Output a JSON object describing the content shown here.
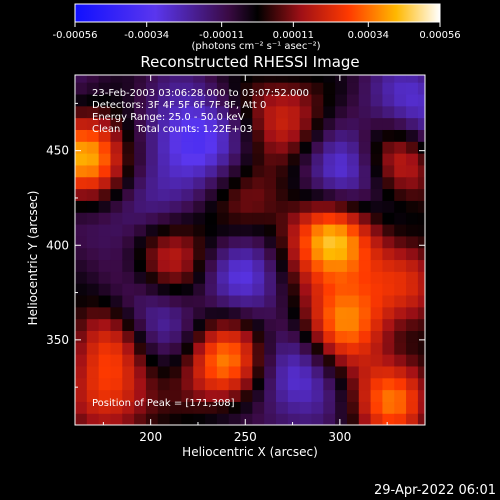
{
  "chart_data": {
    "type": "heatmap",
    "title": "Reconstructed RHESSI Image",
    "xlabel": "Heliocentric X (arcsec)",
    "ylabel": "Heliocentric Y (arcsec)",
    "xlim": [
      160,
      345
    ],
    "ylim": [
      305,
      490
    ],
    "xticks": [
      200,
      250,
      300
    ],
    "yticks": [
      350,
      400,
      450
    ],
    "colorbar": {
      "range": [
        -0.00056,
        0.00056
      ],
      "tick_labels": [
        "-0.00056",
        "-0.00034",
        "-0.00011",
        "0.00011",
        "0.00034",
        "0.00056"
      ],
      "label": "(photons cm⁻² s⁻¹ asec⁻²)"
    },
    "annotations": [
      "23-Feb-2003 03:06:28.000 to 03:07:52.000",
      "Detectors: 3F 4F 5F 6F 7F 8F, Att 0",
      "Energy Range: 25.0 - 50.0 keV",
      "Clean     Total counts: 1.22E+03"
    ],
    "peak_label": "Position of Peak = [171,308]",
    "peak_position": [
      171,
      308
    ],
    "hot_spots": [
      {
        "x": 168,
        "y": 445,
        "value": 0.00052
      },
      {
        "x": 296,
        "y": 403,
        "value": 0.00056
      },
      {
        "x": 240,
        "y": 338,
        "value": 0.00046
      },
      {
        "x": 302,
        "y": 360,
        "value": 0.00042
      },
      {
        "x": 330,
        "y": 444,
        "value": 0.00038
      },
      {
        "x": 327,
        "y": 318,
        "value": 0.0004
      },
      {
        "x": 178,
        "y": 350,
        "value": 0.00032
      },
      {
        "x": 210,
        "y": 395,
        "value": 0.0003
      },
      {
        "x": 270,
        "y": 470,
        "value": 0.00028
      },
      {
        "x": 180,
        "y": 318,
        "value": 0.0003
      },
      {
        "x": 340,
        "y": 380,
        "value": 0.00026
      },
      {
        "x": 255,
        "y": 425,
        "value": 0.00018
      }
    ],
    "cold_spots": [
      {
        "x": 305,
        "y": 435,
        "value": -0.00034
      },
      {
        "x": 222,
        "y": 455,
        "value": -0.0003
      },
      {
        "x": 275,
        "y": 330,
        "value": -0.00026
      },
      {
        "x": 200,
        "y": 360,
        "value": -0.00024
      },
      {
        "x": 250,
        "y": 385,
        "value": -0.00022
      },
      {
        "x": 340,
        "y": 470,
        "value": -0.00024
      },
      {
        "x": 190,
        "y": 420,
        "value": -0.0002
      }
    ]
  },
  "footer": {
    "date": "29-Apr-2022 06:01"
  }
}
